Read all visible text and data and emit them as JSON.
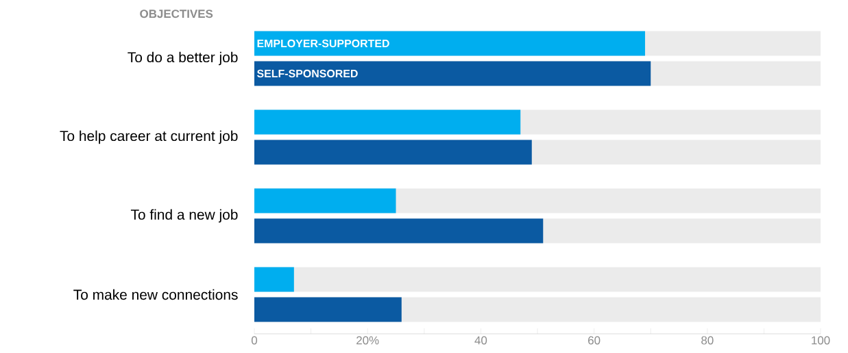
{
  "chart_data": {
    "type": "bar",
    "orientation": "horizontal",
    "title": "OBJECTIVES",
    "categories": [
      "To do a better job",
      "To help career at current job",
      "To find a new job",
      "To make new connections"
    ],
    "series": [
      {
        "name": "EMPLOYER-SUPPORTED",
        "color": "#00aeef",
        "values": [
          69,
          47,
          25,
          7
        ]
      },
      {
        "name": "SELF-SPONSORED",
        "color": "#0b5aa2",
        "values": [
          70,
          49,
          51,
          26
        ]
      }
    ],
    "xlim": [
      0,
      100
    ],
    "xticks": [
      0,
      {
        "value": 10,
        "label": null
      },
      {
        "value": 20,
        "label": "20%"
      },
      {
        "value": 30,
        "label": null
      },
      40,
      {
        "value": 50,
        "label": null
      },
      60,
      {
        "value": 70,
        "label": null
      },
      80,
      {
        "value": 90,
        "label": null
      },
      100
    ],
    "grid": false,
    "legend": false
  }
}
